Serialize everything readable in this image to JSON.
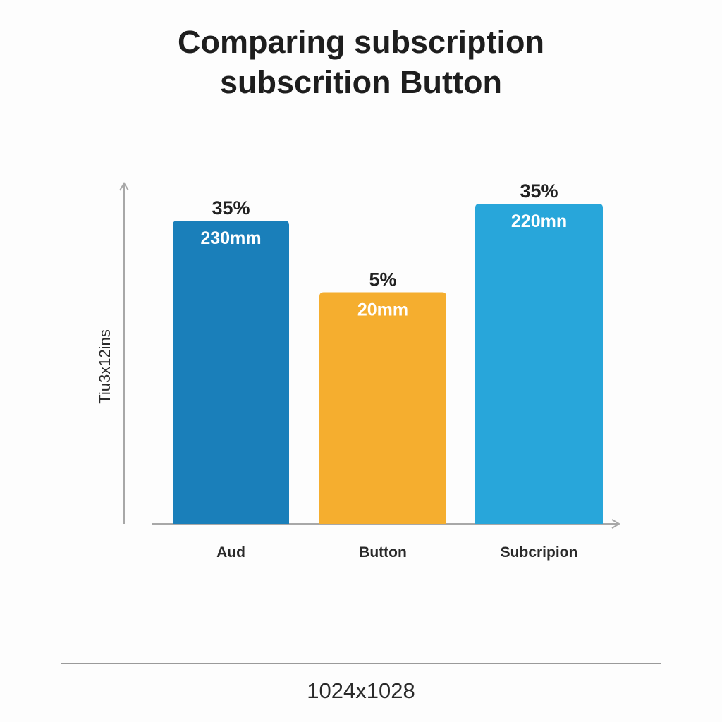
{
  "chart_data": {
    "type": "bar",
    "title": [
      "Comparing subscription",
      "subscrition Button"
    ],
    "ylabel": "Tiu3x12ins",
    "xlabel": "",
    "categories": [
      "Aud",
      "Button",
      "Subcripion"
    ],
    "levels": [
      0.89,
      0.68,
      0.94
    ],
    "top_labels": [
      "35%",
      "5%",
      "35%"
    ],
    "inner_labels": [
      "230mm",
      "20mm",
      "220mn"
    ],
    "colors": [
      "#1a7fba",
      "#f5ae2f",
      "#28a6da"
    ],
    "grid": false,
    "legend": "none"
  },
  "footer": {
    "text": "1024x1028"
  }
}
